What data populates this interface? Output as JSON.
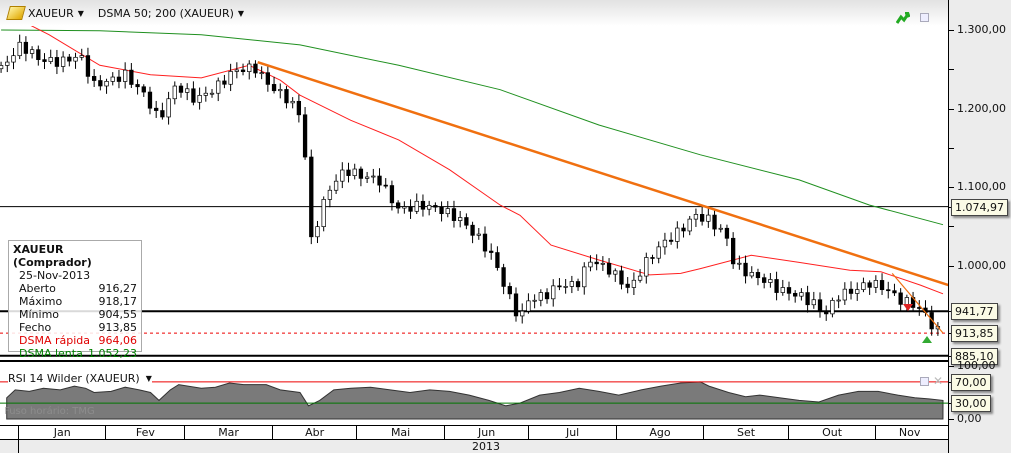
{
  "header": {
    "instrument": "XAUEUR",
    "indicator": "DSMA 50; 200 (XAUEUR)"
  },
  "info": {
    "title": "XAUEUR (Comprador)",
    "date": "25-Nov-2013",
    "rows": [
      {
        "label": "Aberto",
        "value": "916,27"
      },
      {
        "label": "Máximo",
        "value": "918,17"
      },
      {
        "label": "Mínimo",
        "value": "904,55"
      },
      {
        "label": "Fecho",
        "value": "913,85"
      },
      {
        "label": "DSMA rápida",
        "value": "964,06",
        "color": "#e00000"
      },
      {
        "label": "DSMA lenta",
        "value": "1.052,23",
        "color": "#008000"
      }
    ]
  },
  "price_axis": {
    "ticks": [
      "1.300,00",
      "1.200,00",
      "1.100,00",
      "1.000,00"
    ],
    "boxes": [
      "1.074,97",
      "941,77",
      "913,85",
      "885,10"
    ]
  },
  "rsi": {
    "label": "RSI 14 Wilder (XAUEUR)",
    "ticks": [
      "100,00",
      "0,00"
    ],
    "boxes": [
      "70,00",
      "30,00"
    ],
    "timezone": "Fuso horário: TMG"
  },
  "time_axis": {
    "months": [
      "Jan",
      "Fev",
      "Mar",
      "Abr",
      "Mai",
      "Jun",
      "Jul",
      "Ago",
      "Set",
      "Out",
      "Nov"
    ],
    "year": "2013"
  },
  "colors": {
    "up": "#ffffff",
    "down": "#000000",
    "sma_fast": "#ff2020",
    "sma_slow": "#209020",
    "trend": "#f07010"
  },
  "chart_data": {
    "type": "candlestick",
    "x_unit": "day of 2013",
    "ylim": [
      880,
      1340
    ],
    "close": [
      [
        -5,
        1255
      ],
      [
        1,
        1281
      ],
      [
        8,
        1262
      ],
      [
        15,
        1259
      ],
      [
        22,
        1268
      ],
      [
        27,
        1230
      ],
      [
        33,
        1236
      ],
      [
        38,
        1243
      ],
      [
        45,
        1217
      ],
      [
        50,
        1185
      ],
      [
        56,
        1230
      ],
      [
        63,
        1211
      ],
      [
        70,
        1226
      ],
      [
        77,
        1249
      ],
      [
        84,
        1252
      ],
      [
        89,
        1230
      ],
      [
        96,
        1211
      ],
      [
        100,
        1192
      ],
      [
        102,
        1134
      ],
      [
        104,
        1032
      ],
      [
        107,
        1064
      ],
      [
        110,
        1096
      ],
      [
        116,
        1122
      ],
      [
        121,
        1115
      ],
      [
        128,
        1109
      ],
      [
        135,
        1071
      ],
      [
        143,
        1077
      ],
      [
        150,
        1071
      ],
      [
        157,
        1058
      ],
      [
        164,
        1032
      ],
      [
        169,
        1007
      ],
      [
        173,
        969
      ],
      [
        178,
        931
      ],
      [
        181,
        956
      ],
      [
        187,
        962
      ],
      [
        192,
        975
      ],
      [
        198,
        975
      ],
      [
        203,
        1007
      ],
      [
        210,
        994
      ],
      [
        217,
        969
      ],
      [
        222,
        1001
      ],
      [
        228,
        1026
      ],
      [
        235,
        1045
      ],
      [
        240,
        1064
      ],
      [
        245,
        1058
      ],
      [
        251,
        1039
      ],
      [
        254,
        1001
      ],
      [
        260,
        988
      ],
      [
        265,
        981
      ],
      [
        270,
        969
      ],
      [
        277,
        962
      ],
      [
        283,
        950
      ],
      [
        286,
        937
      ],
      [
        291,
        962
      ],
      [
        297,
        969
      ],
      [
        302,
        978
      ],
      [
        307,
        972
      ],
      [
        313,
        956
      ],
      [
        318,
        950
      ],
      [
        322,
        937
      ],
      [
        325,
        918
      ],
      [
        328,
        914
      ]
    ],
    "sma50": [
      [
        -6,
        1325
      ],
      [
        11,
        1294
      ],
      [
        29,
        1255
      ],
      [
        47,
        1243
      ],
      [
        65,
        1239
      ],
      [
        82,
        1255
      ],
      [
        93,
        1236
      ],
      [
        100,
        1217
      ],
      [
        118,
        1185
      ],
      [
        135,
        1160
      ],
      [
        153,
        1122
      ],
      [
        171,
        1077
      ],
      [
        178,
        1064
      ],
      [
        189,
        1026
      ],
      [
        206,
        1007
      ],
      [
        224,
        988
      ],
      [
        235,
        990
      ],
      [
        242,
        996
      ],
      [
        260,
        1013
      ],
      [
        277,
        1004
      ],
      [
        295,
        994
      ],
      [
        306,
        992
      ],
      [
        320,
        975
      ],
      [
        328,
        964
      ]
    ],
    "sma200": [
      [
        -6,
        1300
      ],
      [
        29,
        1299
      ],
      [
        65,
        1294
      ],
      [
        100,
        1281
      ],
      [
        135,
        1255
      ],
      [
        171,
        1224
      ],
      [
        206,
        1179
      ],
      [
        242,
        1141
      ],
      [
        277,
        1109
      ],
      [
        302,
        1077
      ],
      [
        328,
        1052
      ]
    ],
    "trendlines": [
      [
        [
          85,
          1259
        ],
        [
          330,
          975
        ]
      ],
      [
        [
          310,
          990
        ],
        [
          328,
          914
        ]
      ]
    ],
    "hlines": [
      1074.97,
      941.77,
      913.85,
      885.1
    ],
    "rsi": [
      [
        -4,
        40
      ],
      [
        -1,
        55
      ],
      [
        4,
        52
      ],
      [
        9,
        58
      ],
      [
        15,
        55
      ],
      [
        20,
        62
      ],
      [
        24,
        58
      ],
      [
        27,
        50
      ],
      [
        33,
        52
      ],
      [
        38,
        60
      ],
      [
        43,
        55
      ],
      [
        47,
        50
      ],
      [
        50,
        35
      ],
      [
        54,
        55
      ],
      [
        57,
        65
      ],
      [
        65,
        58
      ],
      [
        70,
        60
      ],
      [
        75,
        68
      ],
      [
        80,
        65
      ],
      [
        88,
        65
      ],
      [
        93,
        55
      ],
      [
        100,
        50
      ],
      [
        103,
        25
      ],
      [
        107,
        35
      ],
      [
        112,
        55
      ],
      [
        118,
        58
      ],
      [
        125,
        60
      ],
      [
        132,
        55
      ],
      [
        139,
        50
      ],
      [
        146,
        55
      ],
      [
        153,
        52
      ],
      [
        160,
        45
      ],
      [
        167,
        35
      ],
      [
        173,
        25
      ],
      [
        178,
        30
      ],
      [
        185,
        45
      ],
      [
        192,
        50
      ],
      [
        199,
        58
      ],
      [
        206,
        52
      ],
      [
        213,
        45
      ],
      [
        221,
        55
      ],
      [
        228,
        62
      ],
      [
        235,
        68
      ],
      [
        242,
        70
      ],
      [
        245,
        62
      ],
      [
        252,
        50
      ],
      [
        258,
        42
      ],
      [
        263,
        45
      ],
      [
        270,
        40
      ],
      [
        277,
        35
      ],
      [
        284,
        32
      ],
      [
        291,
        45
      ],
      [
        298,
        52
      ],
      [
        305,
        52
      ],
      [
        312,
        45
      ],
      [
        318,
        40
      ],
      [
        323,
        38
      ],
      [
        328,
        35
      ]
    ]
  }
}
